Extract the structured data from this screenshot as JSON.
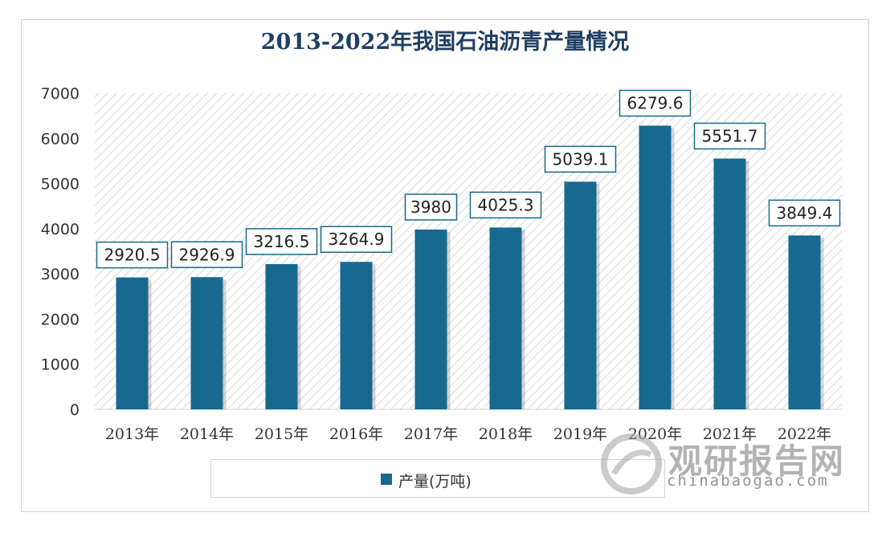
{
  "chart_data": {
    "type": "bar",
    "title": "2013-2022年我国石油沥青产量情况",
    "categories": [
      "2013年",
      "2014年",
      "2015年",
      "2016年",
      "2017年",
      "2018年",
      "2019年",
      "2020年",
      "2021年",
      "2022年"
    ],
    "series": [
      {
        "name": "产量(万吨)",
        "values": [
          2920.5,
          2926.9,
          3216.5,
          3264.9,
          3980,
          4025.3,
          5039.1,
          6279.6,
          5551.7,
          3849.4
        ],
        "color": "#17698f"
      }
    ],
    "data_labels": [
      "2920.5",
      "2926.9",
      "3216.5",
      "3264.9",
      "3980",
      "4025.3",
      "5039.1",
      "6279.6",
      "5551.7",
      "3849.4"
    ],
    "ylim": [
      0,
      7000
    ],
    "yticks": [
      0,
      1000,
      2000,
      3000,
      4000,
      5000,
      6000,
      7000
    ],
    "legend_position": "bottom",
    "grid": false
  },
  "watermark": {
    "cn": "观研报告网",
    "en": "chinabaogao.com"
  }
}
